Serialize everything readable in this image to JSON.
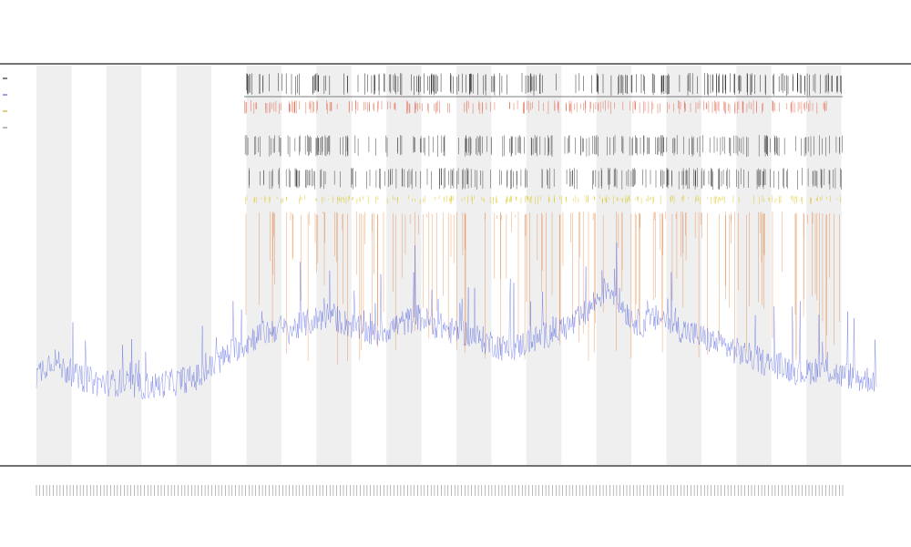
{
  "chart_data": {
    "type": "line",
    "title": "",
    "subtitle_lines": [
      "",
      ""
    ],
    "xlabel": "",
    "ylabel": "",
    "grid": true,
    "legend_position": "top-left",
    "legend_entries": [
      {
        "name": "",
        "color": "#000000"
      },
      {
        "name": "",
        "color": "#3344cc"
      },
      {
        "name": "",
        "color": "#cc9900"
      },
      {
        "name": "",
        "color": "#777777"
      }
    ],
    "band_count": 24,
    "x_range": [
      0,
      1200
    ],
    "y_range": [
      0,
      100
    ],
    "series": [
      {
        "name": "",
        "color": "#3344dd",
        "values": [
          10,
          13,
          15,
          12,
          11,
          9,
          9,
          8,
          8,
          8,
          8,
          7,
          7,
          7,
          7,
          8,
          8,
          9,
          9,
          10,
          12,
          14,
          16,
          18,
          19,
          21,
          22,
          23,
          24,
          23,
          24,
          25,
          26,
          27,
          28,
          26,
          25,
          24,
          23,
          22,
          23,
          24,
          25,
          26,
          27,
          26,
          25,
          24,
          23,
          23,
          22,
          21,
          20,
          19,
          18,
          18,
          19,
          20,
          21,
          22,
          23,
          24,
          25,
          27,
          30,
          33,
          36,
          33,
          29,
          26,
          25,
          26,
          27,
          26,
          24,
          23,
          22,
          21,
          20,
          19,
          18,
          17,
          16,
          15,
          14,
          13,
          13,
          12,
          11,
          11,
          12,
          12,
          11,
          10,
          10,
          9,
          9,
          9
        ]
      }
    ],
    "event_rows": [
      {
        "color": "#000000"
      },
      {
        "color": "#e05030"
      },
      {
        "color": "#222222"
      },
      {
        "color": "#222222"
      },
      {
        "color": "#d8c000"
      },
      {
        "color": "#e07020"
      }
    ]
  }
}
